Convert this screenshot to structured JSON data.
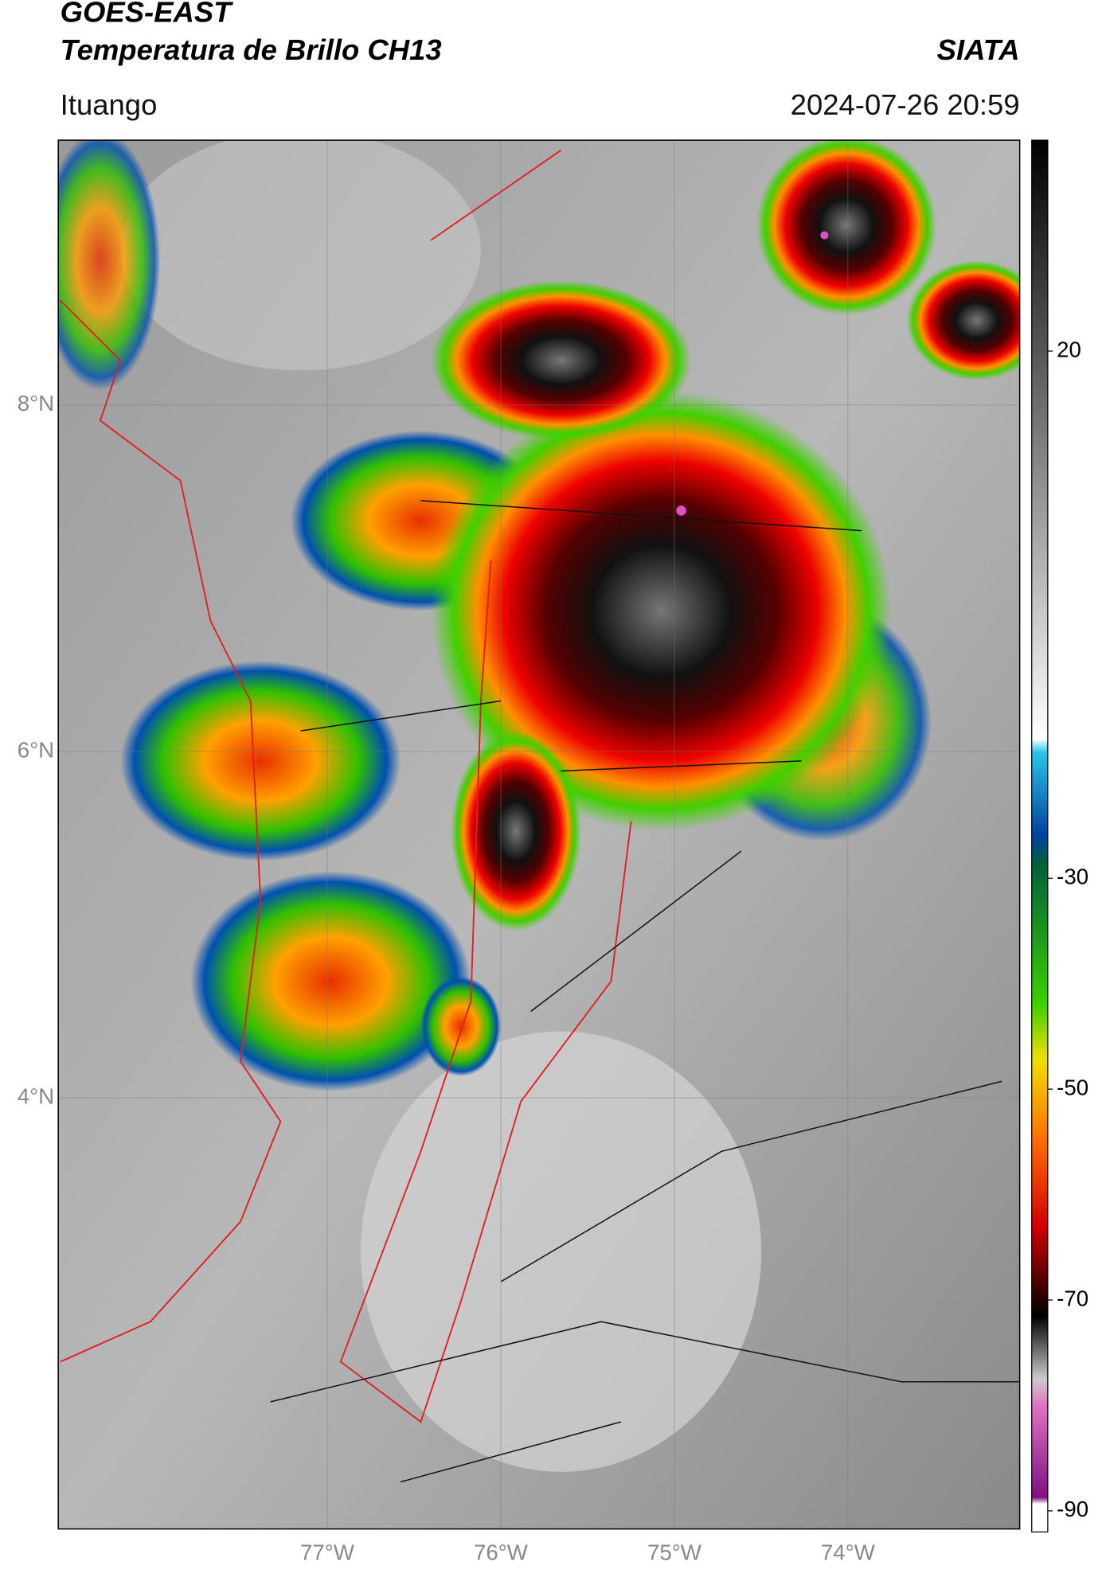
{
  "header": {
    "title": "GOES-EAST",
    "subtitle": "Temperatura de Brillo CH13",
    "source": "SIATA",
    "location": "Ituango",
    "datetime": "2024-07-26 20:59"
  },
  "map": {
    "lonlim": [
      -78.55,
      -73.01
    ],
    "latlim": [
      1.51,
      9.53
    ],
    "lat_ticks": [
      {
        "value": 8,
        "label": "8°N"
      },
      {
        "value": 6,
        "label": "6°N"
      },
      {
        "value": 4,
        "label": "4°N"
      }
    ],
    "lon_ticks": [
      {
        "value": -77,
        "label": "77°W"
      },
      {
        "value": -76,
        "label": "76°W"
      },
      {
        "value": -75,
        "label": "75°W"
      },
      {
        "value": -74,
        "label": "74°W"
      }
    ]
  },
  "colorbar": {
    "lim": [
      -92,
      40
    ],
    "ticks": [
      20,
      -30,
      -50,
      -70,
      -90
    ]
  }
}
